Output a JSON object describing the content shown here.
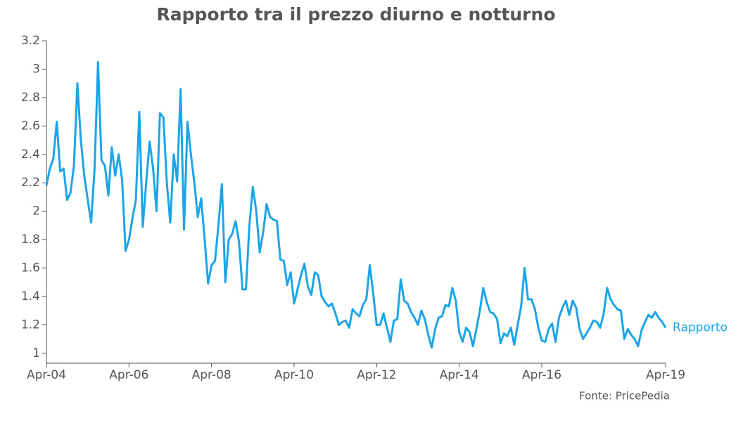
{
  "chart_data": {
    "type": "line",
    "title": "Rapporto tra il prezzo diurno e notturno",
    "source": "Fonte: PricePedia",
    "categories": [
      "Apr-04",
      null,
      null,
      null,
      null,
      null,
      null,
      null,
      null,
      null,
      null,
      null,
      null,
      null,
      null,
      null,
      null,
      null,
      null,
      null,
      null,
      null,
      null,
      null,
      "Apr-06",
      null,
      null,
      null,
      null,
      null,
      null,
      null,
      null,
      null,
      null,
      null,
      null,
      null,
      null,
      null,
      null,
      null,
      null,
      null,
      null,
      null,
      null,
      null,
      "Apr-08",
      null,
      null,
      null,
      null,
      null,
      null,
      null,
      null,
      null,
      null,
      null,
      null,
      null,
      null,
      null,
      null,
      null,
      null,
      null,
      null,
      null,
      null,
      null,
      "Apr-10",
      null,
      null,
      null,
      null,
      null,
      null,
      null,
      null,
      null,
      null,
      null,
      null,
      null,
      null,
      null,
      null,
      null,
      null,
      null,
      null,
      null,
      null,
      null,
      "Apr-12",
      null,
      null,
      null,
      null,
      null,
      null,
      null,
      null,
      null,
      null,
      null,
      null,
      null,
      null,
      null,
      null,
      null,
      null,
      null,
      null,
      null,
      null,
      null,
      "Apr-14",
      null,
      null,
      null,
      null,
      null,
      null,
      null,
      null,
      null,
      null,
      null,
      null,
      null,
      null,
      null,
      null,
      null,
      null,
      null,
      null,
      null,
      null,
      null,
      "Apr-16",
      null,
      null,
      null,
      null,
      null,
      null,
      null,
      null,
      null,
      null,
      null,
      null,
      null,
      null,
      null,
      null,
      null,
      null,
      null,
      null,
      null,
      null,
      null,
      null,
      null,
      null,
      null,
      null,
      null,
      null,
      null,
      null,
      null,
      null,
      null,
      "Apr-19"
    ],
    "series": [
      {
        "name": "Rapporto",
        "color": "#1ba5e8",
        "values": [
          2.18,
          2.3,
          2.37,
          2.63,
          2.28,
          2.3,
          2.08,
          2.13,
          2.32,
          2.9,
          2.5,
          2.25,
          2.08,
          1.92,
          2.3,
          3.05,
          2.36,
          2.32,
          2.11,
          2.45,
          2.25,
          2.4,
          2.22,
          1.72,
          1.8,
          1.95,
          2.08,
          2.7,
          1.89,
          2.2,
          2.49,
          2.3,
          2.0,
          2.69,
          2.66,
          2.2,
          1.92,
          2.4,
          2.21,
          2.86,
          1.87,
          2.63,
          2.4,
          2.2,
          1.96,
          2.09,
          1.8,
          1.49,
          1.62,
          1.65,
          1.9,
          2.19,
          1.5,
          1.8,
          1.84,
          1.93,
          1.78,
          1.45,
          1.45,
          1.9,
          2.17,
          2.0,
          1.71,
          1.85,
          2.05,
          1.96,
          1.94,
          1.93,
          1.66,
          1.65,
          1.48,
          1.57,
          1.35,
          1.45,
          1.55,
          1.63,
          1.47,
          1.41,
          1.57,
          1.55,
          1.4,
          1.36,
          1.33,
          1.35,
          1.28,
          1.2,
          1.22,
          1.23,
          1.18,
          1.31,
          1.28,
          1.26,
          1.34,
          1.38,
          1.62,
          1.42,
          1.2,
          1.2,
          1.28,
          1.18,
          1.08,
          1.23,
          1.24,
          1.52,
          1.37,
          1.35,
          1.29,
          1.25,
          1.2,
          1.3,
          1.24,
          1.13,
          1.04,
          1.17,
          1.25,
          1.26,
          1.34,
          1.33,
          1.46,
          1.37,
          1.15,
          1.08,
          1.18,
          1.15,
          1.05,
          1.17,
          1.3,
          1.46,
          1.36,
          1.29,
          1.28,
          1.24,
          1.07,
          1.14,
          1.12,
          1.18,
          1.06,
          1.2,
          1.33,
          1.6,
          1.38,
          1.38,
          1.31,
          1.18,
          1.09,
          1.08,
          1.17,
          1.21,
          1.08,
          1.25,
          1.32,
          1.37,
          1.27,
          1.37,
          1.32,
          1.17,
          1.1,
          1.14,
          1.18,
          1.23,
          1.22,
          1.18,
          1.28,
          1.46,
          1.38,
          1.34,
          1.31,
          1.3,
          1.1,
          1.17,
          1.13,
          1.1,
          1.05,
          1.16,
          1.22,
          1.27,
          1.25,
          1.29,
          1.25,
          1.22,
          1.18
        ]
      }
    ],
    "ylim": [
      0.93,
      3.2
    ],
    "yticks": [
      1,
      1.2,
      1.4,
      1.6,
      1.8,
      2,
      2.2,
      2.4,
      2.6,
      2.8,
      3,
      3.2
    ],
    "grid": false
  }
}
